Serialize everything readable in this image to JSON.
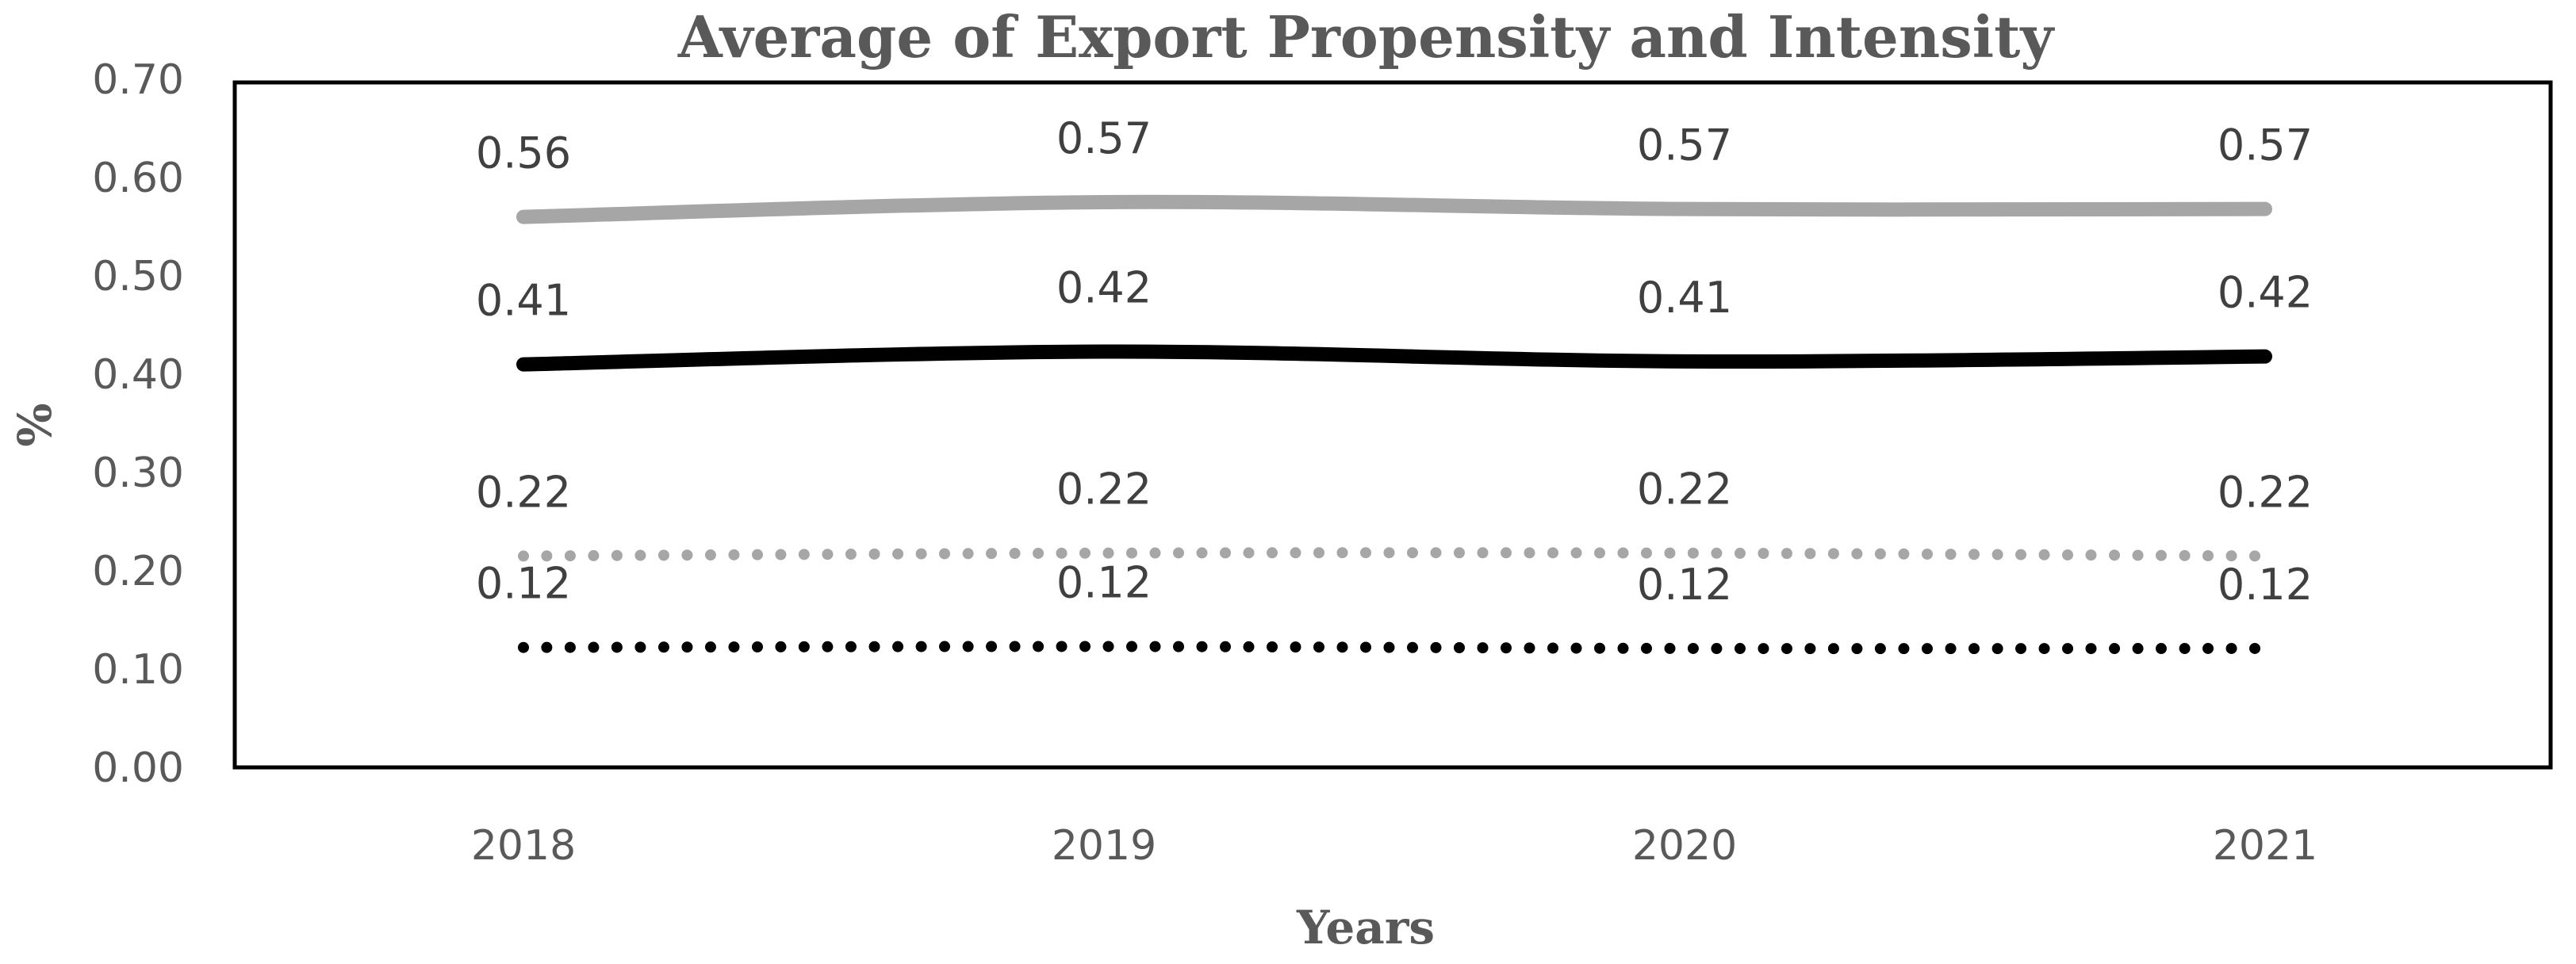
{
  "chart_data": {
    "type": "line",
    "title": "Average of Export Propensity and Intensity",
    "xlabel": "Years",
    "ylabel": "%",
    "categories": [
      "2018",
      "2019",
      "2020",
      "2021"
    ],
    "ylim": [
      0,
      0.7
    ],
    "yticks": [
      "0.00",
      "0.10",
      "0.20",
      "0.30",
      "0.40",
      "0.50",
      "0.60",
      "0.70"
    ],
    "ytick_values": [
      0,
      0.1,
      0.2,
      0.3,
      0.4,
      0.5,
      0.6,
      0.7
    ],
    "grid": false,
    "legend": "none",
    "series": [
      {
        "name": "series-gray-solid",
        "style": "solid",
        "color": "#a6a6a6",
        "values": [
          0.56,
          0.575,
          0.568,
          0.568
        ],
        "labels": [
          "0.56",
          "0.57",
          "0.57",
          "0.57"
        ]
      },
      {
        "name": "series-black-solid",
        "style": "solid",
        "color": "#000000",
        "values": [
          0.41,
          0.423,
          0.413,
          0.418
        ],
        "labels": [
          "0.41",
          "0.42",
          "0.41",
          "0.42"
        ]
      },
      {
        "name": "series-gray-dotted",
        "style": "dotted",
        "color": "#a6a6a6",
        "values": [
          0.215,
          0.218,
          0.218,
          0.215
        ],
        "labels": [
          "0.22",
          "0.22",
          "0.22",
          "0.22"
        ]
      },
      {
        "name": "series-black-dotted",
        "style": "dotted",
        "color": "#000000",
        "values": [
          0.122,
          0.123,
          0.121,
          0.121
        ],
        "labels": [
          "0.12",
          "0.12",
          "0.12",
          "0.12"
        ]
      }
    ]
  }
}
